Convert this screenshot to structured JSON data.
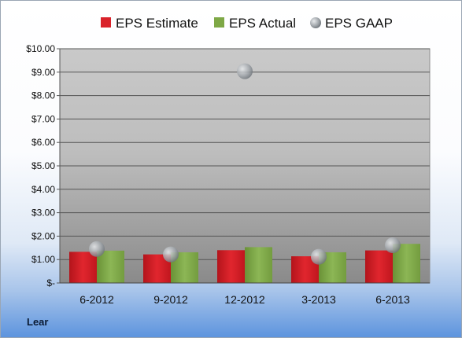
{
  "chart_data": {
    "type": "bar",
    "categories": [
      "6-2012",
      "9-2012",
      "12-2012",
      "3-2013",
      "6-2013"
    ],
    "series": [
      {
        "name": "EPS Estimate",
        "kind": "bar",
        "color": "#d9222a",
        "values": [
          1.33,
          1.22,
          1.4,
          1.14,
          1.39
        ]
      },
      {
        "name": "EPS Actual",
        "kind": "bar",
        "color": "#7ea846",
        "values": [
          1.38,
          1.31,
          1.53,
          1.31,
          1.67
        ]
      },
      {
        "name": "EPS GAAP",
        "kind": "marker",
        "color": "#9aa0a6",
        "values": [
          1.45,
          1.22,
          9.04,
          1.12,
          1.61
        ]
      }
    ],
    "ylim": [
      0,
      10
    ],
    "yticks": [
      0,
      1,
      2,
      3,
      4,
      5,
      6,
      7,
      8,
      9,
      10
    ],
    "ytick_labels": [
      "$-",
      "$1.00",
      "$2.00",
      "$3.00",
      "$4.00",
      "$5.00",
      "$6.00",
      "$7.00",
      "$8.00",
      "$9.00",
      "$10.00"
    ],
    "grid": true,
    "legend_position": "top"
  },
  "company": "Lear"
}
